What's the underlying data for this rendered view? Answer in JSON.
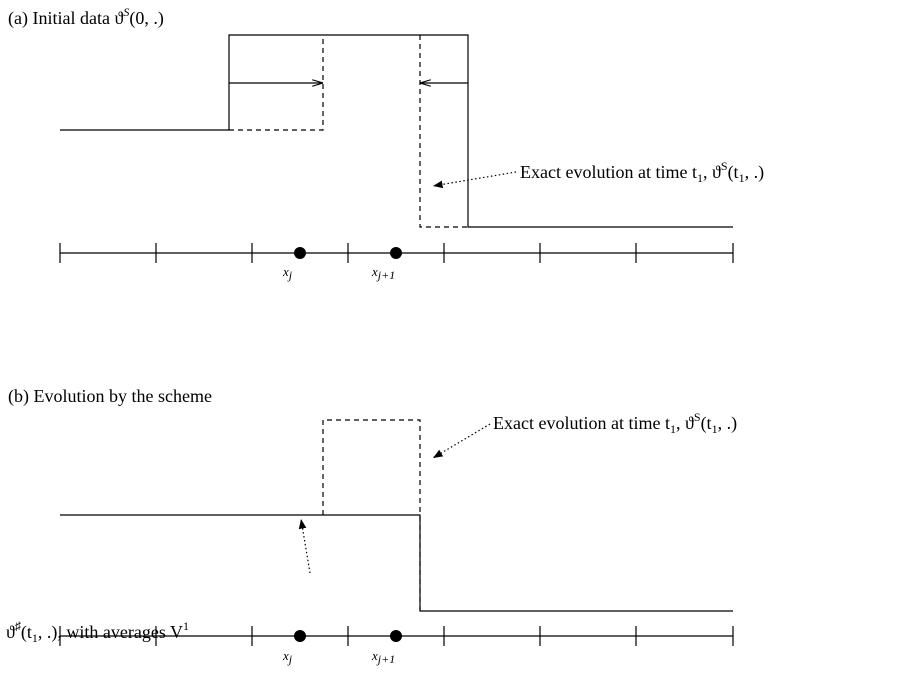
{
  "panel_a": {
    "title": {
      "text": "(a) Initial data ϑ",
      "sup": "S",
      "rest": "(0, .)"
    },
    "annotation": {
      "text": "Exact evolution at time t",
      "sub": "1",
      "mid": ", ϑ",
      "sup": "S",
      "rest": "(t",
      "sub2": "1",
      "end": ", .)"
    },
    "axis_labels": [
      {
        "base": "x",
        "sub": "j"
      },
      {
        "base": "x",
        "sub": "j+1"
      }
    ]
  },
  "panel_b": {
    "title": "(b) Evolution by the scheme",
    "annotation": {
      "text": "Exact evolution at time t",
      "sub": "1",
      "mid": ", ϑ",
      "sup": "S",
      "rest": "(t",
      "sub2": "1",
      "end": ", .)"
    },
    "scheme_label": {
      "text": "ϑ",
      "sup": "♯",
      "rest": "(t",
      "sub": "1",
      "end": ", .), with averages V",
      "sup2": "1"
    },
    "axis_labels": [
      {
        "base": "x",
        "sub": "j"
      },
      {
        "base": "x",
        "sub": "j+1"
      }
    ]
  }
}
